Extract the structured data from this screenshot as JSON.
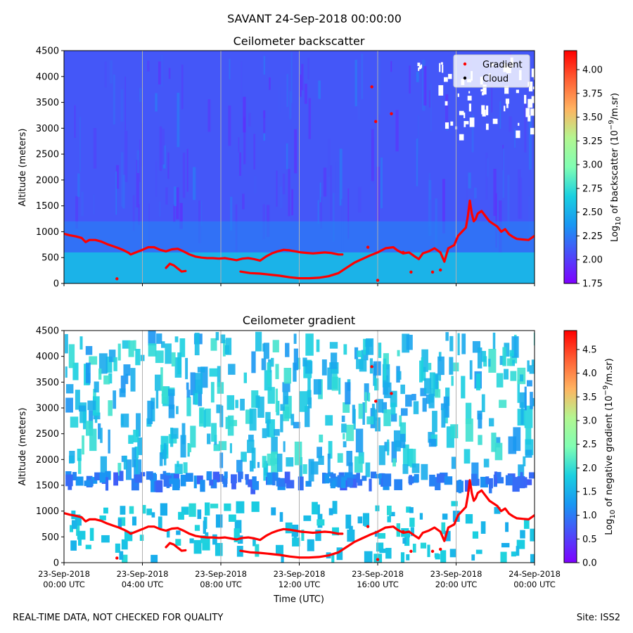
{
  "chart_data": [
    {
      "type": "heatmap",
      "suptitle": "SAVANT 24-Sep-2018 00:00:00",
      "title": "Ceilometer backscatter",
      "ylabel": "Altitude (meters)",
      "xlabel": "",
      "ylim": [
        0,
        4500
      ],
      "xlim_hours": [
        0,
        24
      ],
      "yticks": [
        0,
        500,
        1000,
        1500,
        2000,
        2500,
        3000,
        3500,
        4000,
        4500
      ],
      "colorbar": {
        "label_prefix": "Log",
        "label_sub": "10",
        "label_mid": " of backscatter (10",
        "label_sup": "−9",
        "label_suffix": "/m.sr)",
        "range": [
          1.75,
          4.2
        ],
        "ticks": [
          "1.75",
          "2.00",
          "2.25",
          "2.50",
          "2.75",
          "3.00",
          "3.25",
          "3.50",
          "3.75",
          "4.00"
        ],
        "tick_values": [
          1.75,
          2.0,
          2.25,
          2.5,
          2.75,
          3.0,
          3.25,
          3.5,
          3.75,
          4.0
        ]
      },
      "legend": {
        "position": "top-right",
        "entries": [
          {
            "label": "Gradient",
            "color": "#ff0000"
          },
          {
            "label": "Cloud",
            "color": "#000000"
          }
        ]
      },
      "field_description": {
        "surface_layer_top_m": 600,
        "residual_layer_top_m": 1200,
        "background_value": 2.1,
        "surface_value": 2.55
      }
    },
    {
      "type": "heatmap",
      "title": "Ceilometer gradient",
      "ylabel": "Altitude (meters)",
      "xlabel": "Time (UTC)",
      "ylim": [
        0,
        4500
      ],
      "xlim_hours": [
        0,
        24
      ],
      "yticks": [
        0,
        500,
        1000,
        1500,
        2000,
        2500,
        3000,
        3500,
        4000,
        4500
      ],
      "xticks": [
        {
          "hour": 0,
          "line1": "23-Sep-2018",
          "line2": "00:00 UTC"
        },
        {
          "hour": 4,
          "line1": "23-Sep-2018",
          "line2": "04:00 UTC"
        },
        {
          "hour": 8,
          "line1": "23-Sep-2018",
          "line2": "08:00 UTC"
        },
        {
          "hour": 12,
          "line1": "23-Sep-2018",
          "line2": "12:00 UTC"
        },
        {
          "hour": 16,
          "line1": "23-Sep-2018",
          "line2": "16:00 UTC"
        },
        {
          "hour": 20,
          "line1": "23-Sep-2018",
          "line2": "20:00 UTC"
        },
        {
          "hour": 24,
          "line1": "24-Sep-2018",
          "line2": "00:00 UTC"
        }
      ],
      "colorbar": {
        "label_prefix": "Log",
        "label_sub": "10",
        "label_mid": " of negative gradient (10",
        "label_sup": "−9",
        "label_suffix": "/m.sr)",
        "range": [
          0.0,
          4.9
        ],
        "ticks": [
          "0.0",
          "0.5",
          "1.0",
          "1.5",
          "2.0",
          "2.5",
          "3.0",
          "3.5",
          "4.0",
          "4.5"
        ],
        "tick_values": [
          0.0,
          0.5,
          1.0,
          1.5,
          2.0,
          2.5,
          3.0,
          3.5,
          4.0,
          4.5
        ]
      },
      "bands_m": [
        {
          "from": 150,
          "to": 1200,
          "value": 1.7
        },
        {
          "from": 1580,
          "to": 1780,
          "value": 1.0
        }
      ]
    }
  ],
  "series": {
    "gradient_main": [
      [
        0.0,
        960
      ],
      [
        0.3,
        930
      ],
      [
        0.6,
        910
      ],
      [
        0.9,
        880
      ],
      [
        1.1,
        800
      ],
      [
        1.3,
        840
      ],
      [
        1.6,
        840
      ],
      [
        1.9,
        810
      ],
      [
        2.2,
        760
      ],
      [
        2.5,
        720
      ],
      [
        2.8,
        680
      ],
      [
        3.05,
        640
      ],
      [
        3.3,
        590
      ],
      [
        3.4,
        560
      ],
      [
        4.0,
        650
      ],
      [
        4.3,
        700
      ],
      [
        4.6,
        700
      ],
      [
        4.9,
        650
      ],
      [
        5.2,
        620
      ],
      [
        5.5,
        660
      ],
      [
        5.8,
        670
      ],
      [
        6.1,
        620
      ],
      [
        6.4,
        560
      ],
      [
        6.7,
        520
      ],
      [
        7.0,
        500
      ],
      [
        7.3,
        490
      ],
      [
        7.6,
        490
      ],
      [
        7.9,
        480
      ],
      [
        8.2,
        490
      ],
      [
        8.5,
        470
      ],
      [
        8.8,
        450
      ],
      [
        9.1,
        480
      ],
      [
        9.4,
        490
      ],
      [
        9.7,
        470
      ],
      [
        10.0,
        440
      ],
      [
        10.3,
        520
      ],
      [
        10.6,
        580
      ],
      [
        10.9,
        620
      ],
      [
        11.2,
        650
      ],
      [
        11.5,
        640
      ],
      [
        11.8,
        620
      ],
      [
        12.1,
        600
      ],
      [
        12.4,
        590
      ],
      [
        12.7,
        580
      ],
      [
        13.0,
        590
      ],
      [
        13.3,
        600
      ],
      [
        13.6,
        590
      ],
      [
        14.0,
        560
      ],
      [
        14.2,
        560
      ]
    ],
    "gradient_lower_night": [
      [
        5.2,
        300
      ],
      [
        5.4,
        380
      ],
      [
        5.6,
        350
      ],
      [
        5.8,
        290
      ],
      [
        6.0,
        230
      ],
      [
        6.2,
        240
      ]
    ],
    "gradient_residual": [
      [
        9.0,
        230
      ],
      [
        9.5,
        200
      ],
      [
        10.0,
        190
      ],
      [
        10.5,
        170
      ],
      [
        11.0,
        150
      ],
      [
        11.5,
        120
      ],
      [
        12.0,
        100
      ],
      [
        12.5,
        100
      ],
      [
        13.0,
        110
      ],
      [
        13.5,
        140
      ],
      [
        14.0,
        200
      ],
      [
        14.4,
        300
      ],
      [
        14.8,
        400
      ],
      [
        15.2,
        470
      ],
      [
        15.6,
        540
      ],
      [
        16.0,
        600
      ],
      [
        16.4,
        680
      ],
      [
        16.8,
        700
      ],
      [
        17.0,
        640
      ],
      [
        17.3,
        580
      ],
      [
        17.6,
        600
      ],
      [
        17.9,
        520
      ],
      [
        18.1,
        470
      ],
      [
        18.3,
        580
      ],
      [
        18.6,
        620
      ],
      [
        18.9,
        680
      ],
      [
        19.2,
        600
      ],
      [
        19.4,
        420
      ],
      [
        19.6,
        680
      ],
      [
        19.9,
        740
      ],
      [
        20.1,
        920
      ],
      [
        20.3,
        1000
      ],
      [
        20.5,
        1080
      ],
      [
        20.6,
        1300
      ],
      [
        20.7,
        1600
      ],
      [
        20.8,
        1350
      ],
      [
        20.9,
        1200
      ],
      [
        21.0,
        1250
      ],
      [
        21.1,
        1350
      ],
      [
        21.3,
        1400
      ],
      [
        21.5,
        1300
      ],
      [
        21.7,
        1200
      ],
      [
        21.9,
        1150
      ],
      [
        22.1,
        1100
      ],
      [
        22.3,
        1000
      ],
      [
        22.5,
        1050
      ],
      [
        22.7,
        950
      ],
      [
        22.9,
        900
      ],
      [
        23.1,
        860
      ],
      [
        23.4,
        850
      ],
      [
        23.7,
        840
      ],
      [
        24.0,
        920
      ]
    ],
    "gradient_dots": [
      [
        2.7,
        90
      ],
      [
        16.0,
        60
      ],
      [
        15.7,
        3800
      ],
      [
        15.9,
        3130
      ],
      [
        16.7,
        3280
      ],
      [
        17.7,
        220
      ],
      [
        18.8,
        220
      ],
      [
        19.2,
        260
      ],
      [
        17.3,
        600
      ],
      [
        15.5,
        700
      ]
    ]
  },
  "footer": {
    "left": "REAL-TIME DATA, NOT CHECKED FOR QUALITY",
    "right": "Site: ISS2"
  }
}
